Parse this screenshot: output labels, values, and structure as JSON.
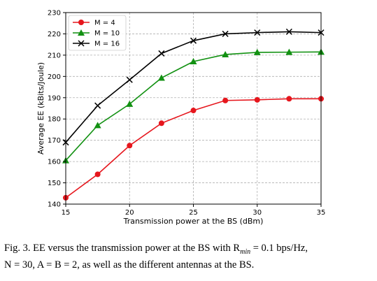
{
  "chart_data": {
    "type": "line",
    "xlabel": "Transmission power at the BS (dBm)",
    "ylabel": "Average EE (kBits/Joule)",
    "xlim": [
      15,
      35
    ],
    "ylim": [
      140,
      230
    ],
    "xticks": [
      15,
      20,
      25,
      30,
      35
    ],
    "yticks": [
      140,
      150,
      160,
      170,
      180,
      190,
      200,
      210,
      220,
      230
    ],
    "grid": true,
    "legend_position": "top-left",
    "x": [
      15,
      17.5,
      20,
      22.5,
      25,
      27.5,
      30,
      32.5,
      35
    ],
    "series": [
      {
        "name": "M = 4",
        "color": "#e6161d",
        "marker": "circle",
        "values": [
          143,
          154,
          167.5,
          178,
          184,
          188.7,
          189,
          189.5,
          189.5
        ]
      },
      {
        "name": "M = 10",
        "color": "#129112",
        "marker": "triangle",
        "values": [
          160.5,
          177,
          187,
          199.3,
          207,
          210.3,
          211.3,
          211.4,
          211.5
        ]
      },
      {
        "name": "M = 16",
        "color": "#000000",
        "marker": "x",
        "values": [
          169,
          186.3,
          198.4,
          210.8,
          216.8,
          220,
          220.6,
          221,
          220.6
        ]
      }
    ]
  },
  "caption": {
    "line1": "Fig. 3.  EE versus the transmission power at the BS with R",
    "sub": "min",
    "line1_tail": " = 0.1 bps/Hz,",
    "line2": "N = 30, A = B = 2, as well as the different antennas at the BS."
  }
}
